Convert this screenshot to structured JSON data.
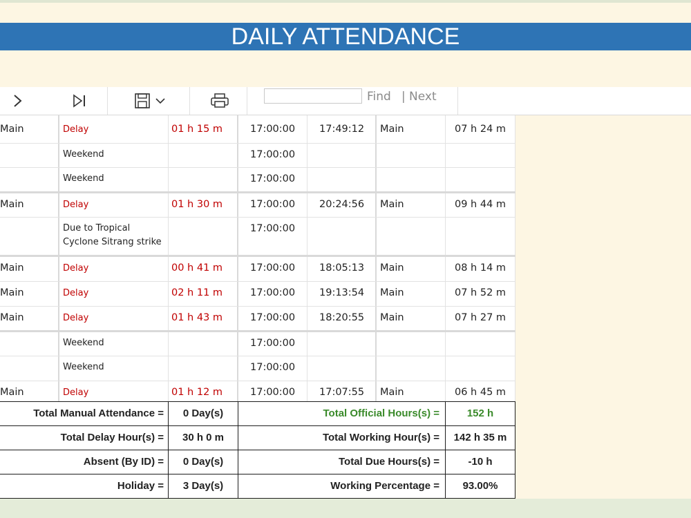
{
  "title": "DAILY ATTENDANCE",
  "toolbar": {
    "find_label": "Find",
    "next_label": "Next",
    "find_value": ""
  },
  "rows": [
    {
      "c0": "Main",
      "c1": "Delay",
      "c2": "01 h 15 m",
      "c3": "17:00:00",
      "c4": "17:49:12",
      "c5": "Main",
      "c6": "07 h 24 m"
    },
    {
      "c0": "",
      "c1": "Weekend",
      "c2": "",
      "c3": "17:00:00",
      "c4": "",
      "c5": "",
      "c6": ""
    },
    {
      "c0": "",
      "c1": "Weekend",
      "c2": "",
      "c3": "17:00:00",
      "c4": "",
      "c5": "",
      "c6": ""
    },
    {
      "c0": "Main",
      "c1": "Delay",
      "c2": "01 h 30 m",
      "c3": "17:00:00",
      "c4": "20:24:56",
      "c5": "Main",
      "c6": "09 h 44 m"
    },
    {
      "c0": "",
      "c1": "Due to Tropical",
      "c1b": "Cyclone Sitrang strike",
      "c2": "",
      "c3": "17:00:00",
      "c4": "",
      "c5": "",
      "c6": ""
    },
    {
      "c0": "Main",
      "c1": "Delay",
      "c2": "00 h 41 m",
      "c3": "17:00:00",
      "c4": "18:05:13",
      "c5": "Main",
      "c6": "08 h 14 m"
    },
    {
      "c0": "Main",
      "c1": "Delay",
      "c2": "02 h 11 m",
      "c3": "17:00:00",
      "c4": "19:13:54",
      "c5": "Main",
      "c6": "07 h 52 m"
    },
    {
      "c0": "Main",
      "c1": "Delay",
      "c2": "01 h 43 m",
      "c3": "17:00:00",
      "c4": "18:20:55",
      "c5": "Main",
      "c6": "07 h 27 m"
    },
    {
      "c0": "",
      "c1": "Weekend",
      "c2": "",
      "c3": "17:00:00",
      "c4": "",
      "c5": "",
      "c6": ""
    },
    {
      "c0": "",
      "c1": "Weekend",
      "c2": "",
      "c3": "17:00:00",
      "c4": "",
      "c5": "",
      "c6": ""
    },
    {
      "c0": "Main",
      "c1": "Delay",
      "c2": "01 h 12 m",
      "c3": "17:00:00",
      "c4": "17:07:55",
      "c5": "Main",
      "c6": "06 h 45 m"
    }
  ],
  "summary": [
    {
      "l1": "Total Manual Attendance =",
      "v1": "0 Day(s)",
      "l2": "Total Official Hours(s) =",
      "v2": "152 h"
    },
    {
      "l1": "Total Delay Hour(s) =",
      "v1": "30 h 0  m",
      "l2": "Total Working Hour(s) =",
      "v2": "142 h 35 m"
    },
    {
      "l1": "Absent (By ID) =",
      "v1": "0 Day(s)",
      "l2": "Total Due Hours(s) =",
      "v2": "-10 h"
    },
    {
      "l1": "Holiday =",
      "v1": "3 Day(s)",
      "l2": "Working Percentage  =",
      "v2": "93.00%"
    }
  ],
  "colors": {
    "title_bg": "#2e74b5",
    "delay_red": "#c00000",
    "official_green": "#3a8a2a"
  }
}
